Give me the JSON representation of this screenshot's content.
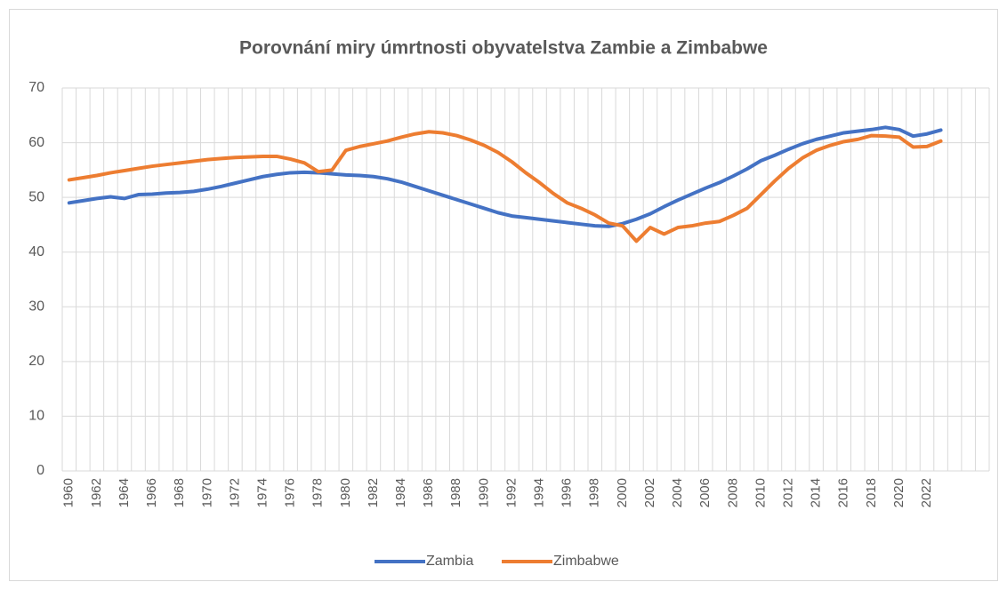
{
  "chart_data": {
    "type": "line",
    "title": "Porovnání miry úmrtnosti obyvatelstva Zambie a Zimbabwe",
    "categories": [
      "1960",
      null,
      "1962",
      null,
      "1964",
      null,
      "1966",
      null,
      "1968",
      null,
      "1970",
      null,
      "1972",
      null,
      "1974",
      null,
      "1976",
      null,
      "1978",
      null,
      "1980",
      null,
      "1982",
      null,
      "1984",
      null,
      "1986",
      null,
      "1988",
      null,
      "1990",
      null,
      "1992",
      null,
      "1994",
      null,
      "1996",
      null,
      "1998",
      null,
      "2000",
      null,
      "2002",
      null,
      "2004",
      null,
      "2006",
      null,
      "2008",
      null,
      "2010",
      null,
      "2012",
      null,
      "2014",
      null,
      "2016",
      null,
      "2018",
      null,
      "2020",
      null,
      "2022",
      null,
      null,
      null,
      null
    ],
    "series": [
      {
        "name": "Zambia",
        "color": "#4472c4",
        "values": [
          49.0,
          49.4,
          49.8,
          50.1,
          49.8,
          50.5,
          50.6,
          50.8,
          50.9,
          51.1,
          51.5,
          52.0,
          52.6,
          53.2,
          53.8,
          54.2,
          54.5,
          54.6,
          54.5,
          54.3,
          54.1,
          54.0,
          53.8,
          53.4,
          52.8,
          52.0,
          51.2,
          50.4,
          49.6,
          48.8,
          48.0,
          47.2,
          46.6,
          46.3,
          46.0,
          45.7,
          45.4,
          45.1,
          44.8,
          44.7,
          45.2,
          46.0,
          47.0,
          48.3,
          49.5,
          50.6,
          51.7,
          52.7,
          53.9,
          55.2,
          56.7,
          57.7,
          58.8,
          59.8,
          60.6,
          61.2,
          61.8,
          62.1,
          62.4,
          62.8,
          62.4,
          61.2,
          61.6,
          62.3,
          null,
          null,
          null
        ]
      },
      {
        "name": "Zimbabwe",
        "color": "#ed7d31",
        "values": [
          53.2,
          53.6,
          54.0,
          54.5,
          54.9,
          55.3,
          55.7,
          56.0,
          56.3,
          56.6,
          56.9,
          57.1,
          57.3,
          57.4,
          57.5,
          57.5,
          57.0,
          56.3,
          54.7,
          55.0,
          58.6,
          59.3,
          59.8,
          60.3,
          61.0,
          61.6,
          62.0,
          61.8,
          61.3,
          60.5,
          59.5,
          58.2,
          56.5,
          54.5,
          52.7,
          50.7,
          49.0,
          48.0,
          46.8,
          45.3,
          44.8,
          42.0,
          44.5,
          43.3,
          44.5,
          44.8,
          45.3,
          45.6,
          46.7,
          48.0,
          50.5,
          53.0,
          55.3,
          57.2,
          58.6,
          59.5,
          60.2,
          60.6,
          61.3,
          61.2,
          61.0,
          59.2,
          59.3,
          60.3,
          null,
          null,
          null
        ]
      }
    ],
    "ylim": [
      0,
      70
    ],
    "yticks": [
      0,
      10,
      20,
      30,
      40,
      50,
      60,
      70
    ],
    "grid": true,
    "legend": "bottom"
  }
}
